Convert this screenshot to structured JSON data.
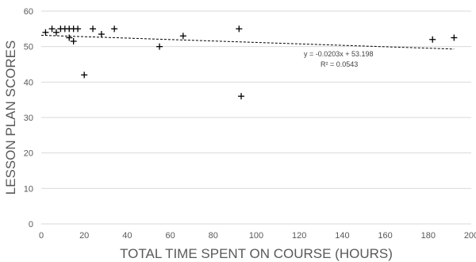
{
  "chart_data": {
    "type": "scatter",
    "xlabel": "TOTAL TIME SPENT ON COURSE (HOURS)",
    "ylabel": "LESSON PLAN SCORES",
    "xlim": [
      0,
      200
    ],
    "ylim": [
      0,
      60
    ],
    "x_ticks": [
      "0",
      "20",
      "40",
      "60",
      "80",
      "100",
      "120",
      "140",
      "160",
      "180",
      "200"
    ],
    "y_ticks": [
      "0",
      "10",
      "20",
      "30",
      "40",
      "50",
      "60"
    ],
    "grid": "horizontal",
    "marker": "+",
    "points": [
      {
        "x": 2,
        "y": 54
      },
      {
        "x": 5,
        "y": 55
      },
      {
        "x": 7,
        "y": 54
      },
      {
        "x": 9,
        "y": 55
      },
      {
        "x": 11,
        "y": 55
      },
      {
        "x": 13,
        "y": 55
      },
      {
        "x": 13,
        "y": 52.5
      },
      {
        "x": 15,
        "y": 55
      },
      {
        "x": 15,
        "y": 51.5
      },
      {
        "x": 17,
        "y": 55
      },
      {
        "x": 20,
        "y": 42
      },
      {
        "x": 24,
        "y": 55
      },
      {
        "x": 28,
        "y": 53.5
      },
      {
        "x": 34,
        "y": 55
      },
      {
        "x": 55,
        "y": 50
      },
      {
        "x": 66,
        "y": 53
      },
      {
        "x": 92,
        "y": 55
      },
      {
        "x": 93,
        "y": 36
      },
      {
        "x": 182,
        "y": 52
      },
      {
        "x": 192,
        "y": 52.5
      }
    ],
    "trendline": {
      "type": "linear",
      "slope": -0.0203,
      "intercept": 53.198,
      "x_range": [
        0,
        192
      ],
      "equation": "y = -0.0203x + 53.198",
      "r_squared": "R² = 0.0543"
    },
    "colors": {
      "marker": "#000000",
      "grid": "#d9d9d9",
      "text": "#595959",
      "trendline": "#000000"
    }
  }
}
